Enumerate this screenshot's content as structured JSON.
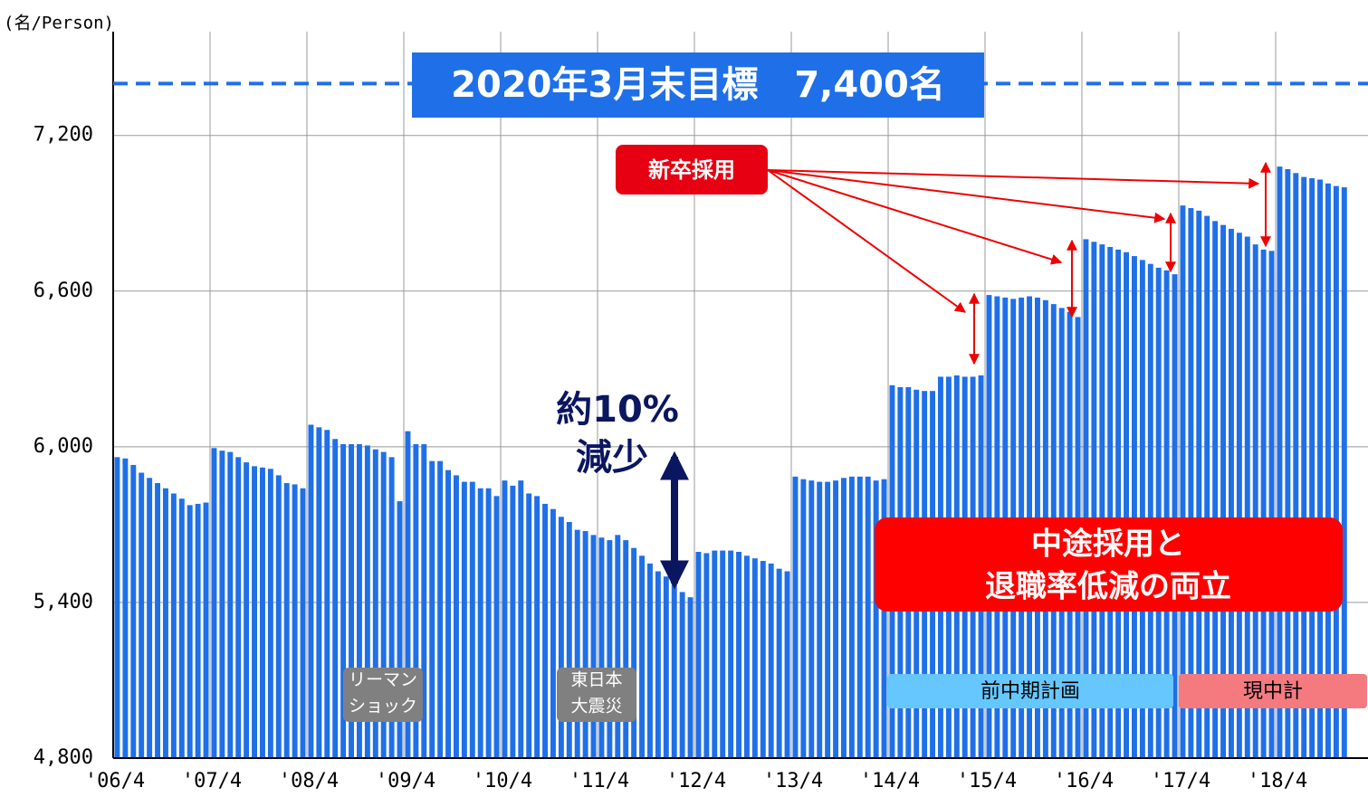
{
  "chart_data": {
    "type": "bar",
    "unit_label": "(名/Person)",
    "color": "#1f6fe8",
    "ylim": [
      4800,
      7600
    ],
    "yticks": [
      {
        "value": 4800,
        "label": "4,800"
      },
      {
        "value": 5400,
        "label": "5,400"
      },
      {
        "value": 6000,
        "label": "6,000"
      },
      {
        "value": 6600,
        "label": "6,600"
      },
      {
        "value": 7200,
        "label": "7,200"
      }
    ],
    "grid": true,
    "target": {
      "value": 7400,
      "label": "2020年3月末目標　7,400名"
    },
    "categories": [
      "'06/4",
      null,
      null,
      null,
      null,
      null,
      null,
      null,
      null,
      null,
      null,
      null,
      "'07/4",
      null,
      null,
      null,
      null,
      null,
      null,
      null,
      null,
      null,
      null,
      null,
      "'08/4",
      null,
      null,
      null,
      null,
      null,
      null,
      null,
      null,
      null,
      null,
      null,
      "'09/4",
      null,
      null,
      null,
      null,
      null,
      null,
      null,
      null,
      null,
      null,
      null,
      "'10/4",
      null,
      null,
      null,
      null,
      null,
      null,
      null,
      null,
      null,
      null,
      null,
      "'11/4",
      null,
      null,
      null,
      null,
      null,
      null,
      null,
      null,
      null,
      null,
      null,
      "'12/4",
      null,
      null,
      null,
      null,
      null,
      null,
      null,
      null,
      null,
      null,
      null,
      "'13/4",
      null,
      null,
      null,
      null,
      null,
      null,
      null,
      null,
      null,
      null,
      null,
      "'14/4",
      null,
      null,
      null,
      null,
      null,
      null,
      null,
      null,
      null,
      null,
      null,
      "'15/4",
      null,
      null,
      null,
      null,
      null,
      null,
      null,
      null,
      null,
      null,
      null,
      "'16/4",
      null,
      null,
      null,
      null,
      null,
      null,
      null,
      null,
      null,
      null,
      null,
      "'17/4",
      null,
      null,
      null,
      null,
      null,
      null,
      null,
      null,
      null,
      null,
      null,
      "'18/4",
      null,
      null,
      null,
      null,
      null,
      null,
      null,
      null
    ],
    "values": [
      5960,
      5955,
      5930,
      5900,
      5880,
      5860,
      5840,
      5820,
      5800,
      5775,
      5780,
      5785,
      5995,
      5985,
      5980,
      5960,
      5940,
      5925,
      5920,
      5915,
      5890,
      5860,
      5855,
      5840,
      6085,
      6075,
      6065,
      6030,
      6010,
      6010,
      6010,
      6005,
      5990,
      5980,
      5960,
      5790,
      6060,
      6010,
      6010,
      5945,
      5945,
      5910,
      5890,
      5865,
      5865,
      5840,
      5840,
      5810,
      5870,
      5850,
      5870,
      5820,
      5810,
      5780,
      5760,
      5730,
      5710,
      5680,
      5675,
      5660,
      5650,
      5640,
      5660,
      5640,
      5610,
      5580,
      5550,
      5520,
      5500,
      5470,
      5440,
      5420,
      5595,
      5590,
      5600,
      5600,
      5600,
      5595,
      5580,
      5570,
      5560,
      5550,
      5530,
      5520,
      5885,
      5875,
      5870,
      5865,
      5865,
      5870,
      5880,
      5885,
      5885,
      5885,
      5870,
      5875,
      6237,
      6230,
      6230,
      6220,
      6215,
      6215,
      6270,
      6270,
      6275,
      6270,
      6270,
      6275,
      6585,
      6580,
      6575,
      6570,
      6575,
      6580,
      6575,
      6565,
      6550,
      6535,
      6520,
      6500,
      6800,
      6790,
      6780,
      6770,
      6760,
      6750,
      6735,
      6720,
      6705,
      6690,
      6680,
      6665,
      6930,
      6920,
      6910,
      6890,
      6870,
      6855,
      6840,
      6825,
      6810,
      6780,
      6760,
      6755,
      7080,
      7070,
      7055,
      7040,
      7035,
      7030,
      7015,
      7005,
      7000
    ],
    "annotations": {
      "new_grad": "新卒採用",
      "decrease": [
        "約10%",
        "減少"
      ],
      "midcareer": [
        "中途採用と",
        "退職率低減の両立"
      ],
      "lehman": [
        "リーマン",
        "ショック"
      ],
      "quake": [
        "東日本",
        "大震災"
      ],
      "prev_plan": "前中期計画",
      "curr_plan": "現中計"
    }
  }
}
